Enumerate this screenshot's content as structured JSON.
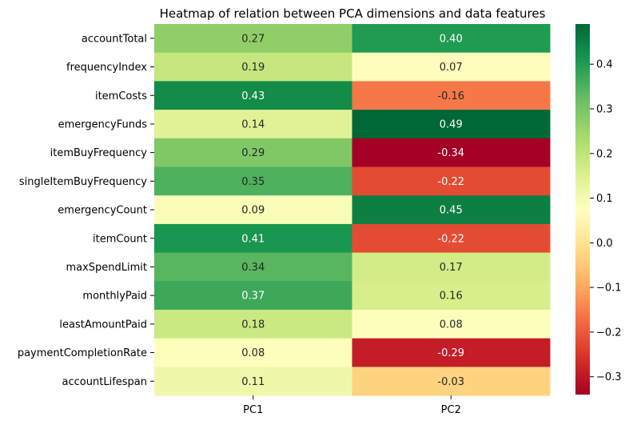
{
  "chart_data": {
    "type": "heatmap",
    "title": "Heatmap of relation between PCA dimensions and data features",
    "xlabel": "",
    "ylabel": "",
    "columns": [
      "PC1",
      "PC2"
    ],
    "rows": [
      "accountTotal",
      "frequencyIndex",
      "itemCosts",
      "emergencyFunds",
      "itemBuyFrequency",
      "singleItemBuyFrequency",
      "emergencyCount",
      "itemCount",
      "maxSpendLimit",
      "monthlyPaid",
      "leastAmountPaid",
      "paymentCompletionRate",
      "accountLifespan"
    ],
    "values": [
      [
        0.27,
        0.4
      ],
      [
        0.19,
        0.07
      ],
      [
        0.43,
        -0.16
      ],
      [
        0.14,
        0.49
      ],
      [
        0.29,
        -0.34
      ],
      [
        0.35,
        -0.22
      ],
      [
        0.09,
        0.45
      ],
      [
        0.41,
        -0.22
      ],
      [
        0.34,
        0.17
      ],
      [
        0.37,
        0.16
      ],
      [
        0.18,
        0.08
      ],
      [
        0.08,
        -0.29
      ],
      [
        0.11,
        -0.03
      ]
    ],
    "labels": [
      [
        "0.27",
        "0.40"
      ],
      [
        "0.19",
        "0.07"
      ],
      [
        "0.43",
        "-0.16"
      ],
      [
        "0.14",
        "0.49"
      ],
      [
        "0.29",
        "-0.34"
      ],
      [
        "0.35",
        "-0.22"
      ],
      [
        "0.09",
        "0.45"
      ],
      [
        "0.41",
        "-0.22"
      ],
      [
        "0.34",
        "0.17"
      ],
      [
        "0.37",
        "0.16"
      ],
      [
        "0.18",
        "0.08"
      ],
      [
        "0.08",
        "-0.29"
      ],
      [
        "0.11",
        "-0.03"
      ]
    ],
    "colormap": "RdYlGn",
    "color_range": [
      -0.34,
      0.49
    ],
    "colorbar": {
      "ticks": [
        -0.3,
        -0.2,
        -0.1,
        0.0,
        0.1,
        0.2,
        0.3,
        0.4
      ],
      "tick_labels": [
        "−0.3",
        "−0.2",
        "−0.1",
        "0.0",
        "0.1",
        "0.2",
        "0.3",
        "0.4"
      ],
      "placement": "right"
    },
    "grid": false
  }
}
